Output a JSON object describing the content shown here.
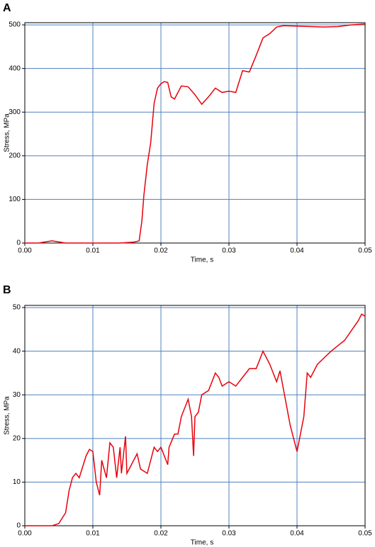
{
  "chart_data": [
    {
      "type": "line",
      "title": "A",
      "xlabel": "Time, s",
      "ylabel": "Stress, MPa",
      "xlim": [
        0,
        0.05
      ],
      "ylim": [
        0,
        505
      ],
      "xticks": [
        {
          "value": 0,
          "label": "0.00"
        },
        {
          "value": 0.01,
          "label": "0.01"
        },
        {
          "value": 0.02,
          "label": "0.02"
        },
        {
          "value": 0.03,
          "label": "0.03"
        },
        {
          "value": 0.04,
          "label": "0.04"
        },
        {
          "value": 0.05,
          "label": "0.05"
        }
      ],
      "yticks": [
        0,
        100,
        200,
        300,
        400,
        500
      ],
      "grid": true,
      "grid_color": "#4f81bd",
      "x": [
        0,
        0.002,
        0.004,
        0.006,
        0.008,
        0.01,
        0.012,
        0.014,
        0.016,
        0.0168,
        0.0172,
        0.0175,
        0.018,
        0.0185,
        0.019,
        0.0195,
        0.02,
        0.0205,
        0.021,
        0.0215,
        0.022,
        0.0225,
        0.023,
        0.024,
        0.025,
        0.026,
        0.027,
        0.028,
        0.029,
        0.03,
        0.031,
        0.032,
        0.033,
        0.034,
        0.035,
        0.036,
        0.037,
        0.038,
        0.04,
        0.042,
        0.044,
        0.046,
        0.048,
        0.05
      ],
      "series": [
        {
          "color": "#e8000b",
          "values": [
            0,
            0,
            5,
            0,
            0,
            0,
            0,
            0,
            2,
            5,
            50,
            110,
            180,
            230,
            320,
            355,
            365,
            370,
            368,
            335,
            330,
            345,
            360,
            358,
            340,
            318,
            335,
            355,
            345,
            348,
            345,
            395,
            392,
            430,
            470,
            480,
            495,
            498,
            497,
            496,
            495,
            496,
            500,
            502
          ]
        }
      ]
    },
    {
      "type": "line",
      "title": "B",
      "xlabel": "Time, s",
      "ylabel": "Stress, MPa",
      "xlim": [
        0,
        0.05
      ],
      "ylim": [
        0,
        50.5
      ],
      "xticks": [
        {
          "value": 0,
          "label": "0.00"
        },
        {
          "value": 0.01,
          "label": "0.01"
        },
        {
          "value": 0.02,
          "label": "0.02"
        },
        {
          "value": 0.03,
          "label": "0.03"
        },
        {
          "value": 0.04,
          "label": "0.04"
        },
        {
          "value": 0.05,
          "label": "0.05"
        }
      ],
      "yticks": [
        0,
        10,
        20,
        30,
        40,
        50
      ],
      "grid": true,
      "grid_color": "#4f81bd",
      "x": [
        0,
        0.004,
        0.005,
        0.006,
        0.0065,
        0.007,
        0.0075,
        0.008,
        0.009,
        0.0095,
        0.01,
        0.0105,
        0.011,
        0.0113,
        0.012,
        0.0125,
        0.013,
        0.0135,
        0.014,
        0.0142,
        0.0148,
        0.015,
        0.016,
        0.0165,
        0.017,
        0.018,
        0.019,
        0.0195,
        0.02,
        0.021,
        0.0212,
        0.022,
        0.0225,
        0.023,
        0.024,
        0.0245,
        0.0248,
        0.025,
        0.0255,
        0.026,
        0.027,
        0.028,
        0.0285,
        0.029,
        0.03,
        0.031,
        0.032,
        0.033,
        0.034,
        0.035,
        0.036,
        0.037,
        0.0375,
        0.039,
        0.04,
        0.041,
        0.0415,
        0.042,
        0.043,
        0.045,
        0.047,
        0.049,
        0.0495,
        0.05
      ],
      "series": [
        {
          "color": "#e8000b",
          "values": [
            0,
            0,
            0.5,
            3,
            8,
            11,
            12,
            11,
            16,
            17.5,
            17,
            10,
            7,
            15,
            11,
            19,
            18,
            11,
            18,
            12,
            20.5,
            12,
            15,
            16.5,
            13,
            12,
            18,
            17,
            18,
            14,
            18,
            21,
            21,
            25,
            29,
            25,
            16,
            25,
            26,
            30,
            31,
            35,
            34,
            32,
            33,
            32,
            34,
            36,
            36,
            40,
            37,
            33,
            35.5,
            23,
            17,
            25,
            35,
            34,
            37,
            40,
            42.5,
            47,
            48.5,
            48
          ]
        }
      ]
    }
  ]
}
